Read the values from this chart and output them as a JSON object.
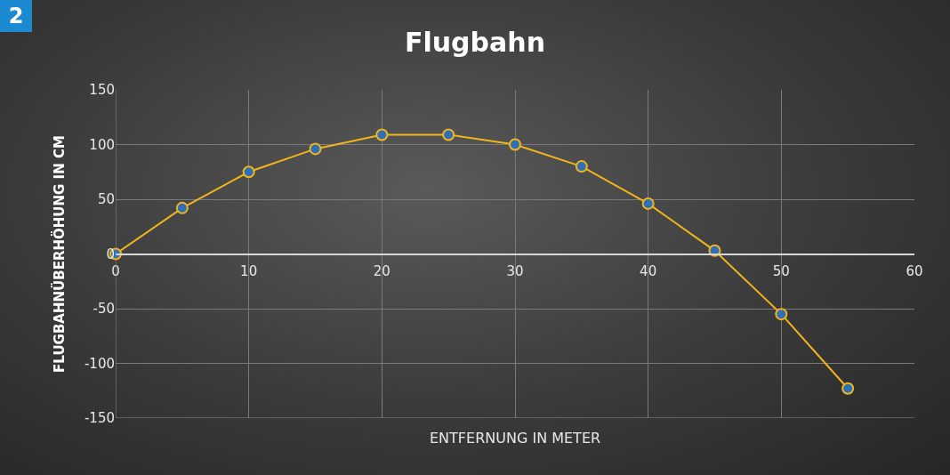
{
  "chart_data": {
    "type": "line",
    "title": "Flugbahn",
    "xlabel": "ENTFERNUNG IN METER",
    "ylabel": "FLUGBAHNÜBERHÖHUNG IN CM",
    "annotations": [
      "2"
    ],
    "x": [
      0,
      5,
      10,
      15,
      20,
      25,
      30,
      35,
      40,
      45,
      50,
      55
    ],
    "series": [
      {
        "color": "#f2b51c",
        "values": [
          0,
          42,
          75,
          96,
          109,
          109,
          100,
          80,
          46,
          3,
          -55,
          -123
        ]
      }
    ],
    "xlim": [
      0,
      60
    ],
    "xticks": [
      0,
      10,
      20,
      30,
      40,
      50,
      60
    ],
    "ylim": [
      -150,
      150
    ],
    "yticks": [
      -150,
      -100,
      -50,
      0,
      50,
      100,
      150
    ],
    "grid": true,
    "marker": "circle",
    "line_style": "solid"
  }
}
